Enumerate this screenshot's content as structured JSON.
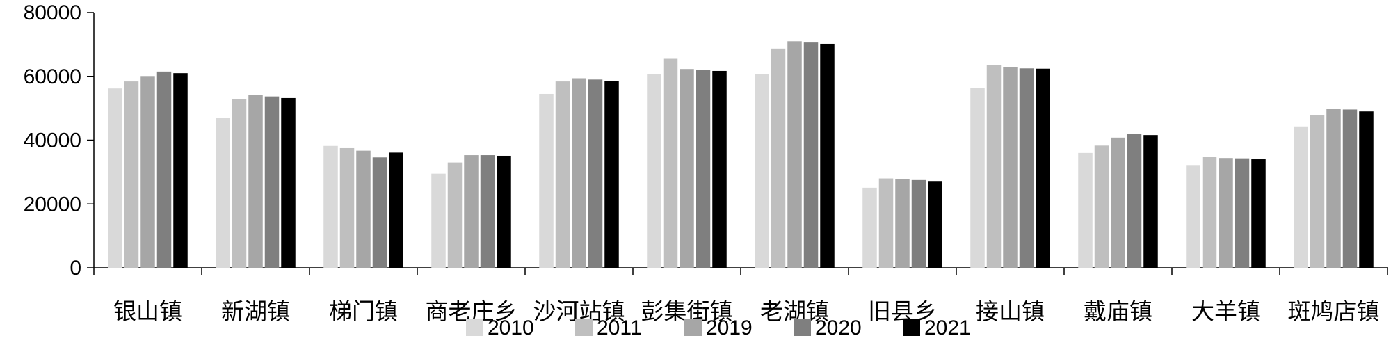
{
  "chart_data": {
    "type": "bar",
    "title": "",
    "xlabel": "",
    "ylabel": "",
    "ylim": [
      0,
      80000
    ],
    "yticks": [
      0,
      20000,
      40000,
      60000,
      80000
    ],
    "grid": false,
    "legend_position": "bottom",
    "categories": [
      "银山镇",
      "新湖镇",
      "梯门镇",
      "商老庄乡",
      "沙河站镇",
      "彭集街镇",
      "老湖镇",
      "旧县乡",
      "接山镇",
      "戴庙镇",
      "大羊镇",
      "斑鸠店镇"
    ],
    "series": [
      {
        "name": "2010",
        "color": "#d9d9d9",
        "values": [
          56200,
          47000,
          38200,
          29500,
          54500,
          60700,
          60800,
          25100,
          56300,
          36000,
          32200,
          44300
        ]
      },
      {
        "name": "2011",
        "color": "#bfbfbf",
        "values": [
          58400,
          52800,
          37500,
          33000,
          58400,
          65500,
          68700,
          28000,
          63600,
          38300,
          34800,
          47800
        ]
      },
      {
        "name": "2019",
        "color": "#a6a6a6",
        "values": [
          60100,
          54100,
          36700,
          35300,
          59400,
          62300,
          71000,
          27700,
          62900,
          40800,
          34400,
          49900
        ]
      },
      {
        "name": "2020",
        "color": "#7f7f7f",
        "values": [
          61500,
          53700,
          34600,
          35300,
          59000,
          62100,
          70600,
          27500,
          62500,
          41900,
          34300,
          49600
        ]
      },
      {
        "name": "2021",
        "color": "#000000",
        "values": [
          61000,
          53200,
          36100,
          35100,
          58600,
          61700,
          70200,
          27200,
          62400,
          41600,
          34000,
          49000
        ]
      }
    ]
  }
}
